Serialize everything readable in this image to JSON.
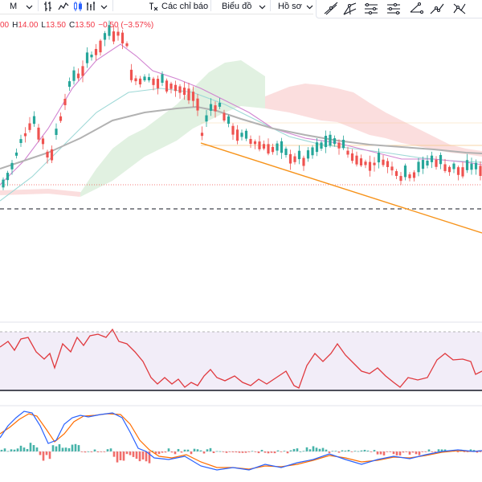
{
  "toolbar": {
    "interval_label": "M",
    "indicators_label": "Các chỉ báo",
    "chart_label": "Biểu đồ",
    "profile_label": "Hồ sơ"
  },
  "legend": {
    "open_partial": "00",
    "high_key": "H",
    "high_value": "14.00",
    "low_key": "L",
    "low_value": "13.50",
    "close_key": "C",
    "close_value": "13.50",
    "change": "−0.50 (−3.57%)"
  },
  "colors": {
    "up_candle": "#26a69a",
    "down_candle": "#ef5350",
    "trendline": "#f7931a",
    "ma_long": "#b2b2b2",
    "ma_short": "#d184d1",
    "ma_mid": "#9fd9d7",
    "cloud_red": "#f8c8c8",
    "cloud_green": "#c8e6c9",
    "rsi_line": "#e0393e",
    "rsi_band": "#ede7f6",
    "macd_line": "#2962ff",
    "signal_line": "#ff6d00"
  },
  "icons": [
    "chevron-down-icon",
    "bar-style-icon",
    "candle-style-icon",
    "line-style-icon",
    "indicators-icon",
    "trend-line-icon",
    "fib-icon",
    "pitchfork-icon",
    "path-icon",
    "measure-icon",
    "brush-icon"
  ]
}
